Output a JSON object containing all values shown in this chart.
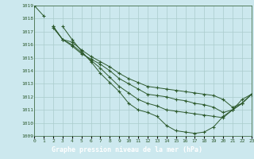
{
  "title": "Graphe pression niveau de la mer (hPa)",
  "background_color": "#cce8ee",
  "grid_color": "#aacccc",
  "line_color": "#2d5a2d",
  "title_bg": "#336633",
  "title_fg": "#ffffff",
  "xmin": 0,
  "xmax": 23,
  "ymin": 1009,
  "ymax": 1019,
  "series": [
    [
      1019,
      1018.2,
      null,
      1017.4,
      1016.4,
      1015.5,
      1014.7,
      1013.8,
      1013.1,
      1012.4,
      1011.5,
      1011.0,
      1010.8,
      1010.5,
      1009.8,
      1009.4,
      1009.3,
      1009.2,
      1009.3,
      1009.7,
      1010.5,
      1011.0,
      1011.8,
      1012.2
    ],
    [
      1019,
      null,
      1017.4,
      1016.4,
      1016.0,
      1015.4,
      1014.8,
      1014.2,
      1013.5,
      1012.8,
      1012.3,
      1011.8,
      1011.5,
      1011.3,
      1011.0,
      1010.9,
      1010.8,
      1010.7,
      1010.6,
      1010.5,
      1010.4,
      1011.0,
      1011.5,
      1012.2
    ],
    [
      1019,
      null,
      1017.4,
      1016.4,
      1015.9,
      1015.3,
      1014.9,
      1014.5,
      1014.0,
      1013.4,
      1013.0,
      1012.6,
      1012.2,
      1012.1,
      1012.0,
      1011.8,
      1011.7,
      1011.5,
      1011.4,
      1011.2,
      1010.8,
      1011.0,
      1011.5,
      1012.2
    ],
    [
      1019,
      null,
      1017.3,
      1016.4,
      1016.2,
      1015.6,
      1015.1,
      1014.7,
      1014.3,
      1013.8,
      1013.4,
      1013.1,
      1012.8,
      1012.7,
      1012.6,
      1012.5,
      1012.4,
      1012.3,
      1012.2,
      1012.1,
      1011.8,
      1011.2,
      1011.5,
      1012.2
    ]
  ]
}
